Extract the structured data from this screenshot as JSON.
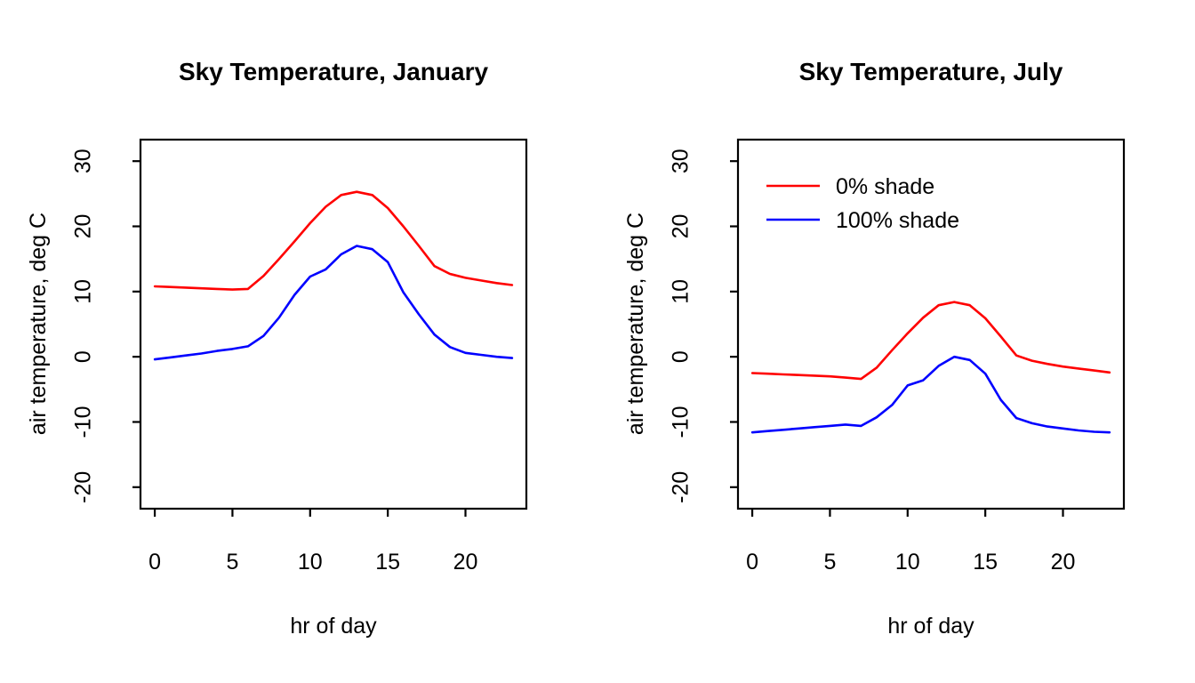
{
  "figure": {
    "background": "#ffffff",
    "panel_count": 2
  },
  "colors": {
    "series_red": "#ff0000",
    "series_blue": "#0000ff",
    "axis": "#000000",
    "background": "#ffffff"
  },
  "chart_data": [
    {
      "type": "line",
      "title": "Sky Temperature, January",
      "xlabel": "hr of day",
      "ylabel": "air temperature, deg C",
      "x_ticks": [
        0,
        5,
        10,
        15,
        20
      ],
      "y_ticks": [
        30,
        20,
        10,
        0,
        -10,
        -20
      ],
      "xlim": [
        0,
        23
      ],
      "ylim": [
        -20,
        30
      ],
      "grid": false,
      "legend": false,
      "x": [
        0,
        1,
        2,
        3,
        4,
        5,
        6,
        7,
        8,
        9,
        10,
        11,
        12,
        13,
        14,
        15,
        16,
        17,
        18,
        19,
        20,
        21,
        22,
        23
      ],
      "series": [
        {
          "name": "0% shade",
          "color": "#ff0000",
          "values": [
            10.8,
            10.7,
            10.6,
            10.5,
            10.4,
            10.3,
            10.4,
            12.4,
            15.0,
            17.7,
            20.5,
            23.0,
            24.8,
            25.3,
            24.8,
            22.8,
            20.0,
            17.0,
            13.9,
            12.7,
            12.1,
            11.7,
            11.3,
            11.0
          ]
        },
        {
          "name": "100% shade",
          "color": "#0000ff",
          "values": [
            -0.4,
            -0.1,
            0.2,
            0.5,
            0.9,
            1.2,
            1.6,
            3.2,
            6.0,
            9.5,
            12.3,
            13.4,
            15.7,
            17.0,
            16.5,
            14.5,
            9.9,
            6.5,
            3.4,
            1.5,
            0.6,
            0.3,
            0.0,
            -0.2
          ]
        }
      ]
    },
    {
      "type": "line",
      "title": "Sky Temperature, July",
      "xlabel": "hr of day",
      "ylabel": "air temperature, deg C",
      "x_ticks": [
        0,
        5,
        10,
        15,
        20
      ],
      "y_ticks": [
        30,
        20,
        10,
        0,
        -10,
        -20
      ],
      "xlim": [
        0,
        23
      ],
      "ylim": [
        -20,
        30
      ],
      "grid": false,
      "legend": true,
      "legend_position": "topleft",
      "x": [
        0,
        1,
        2,
        3,
        4,
        5,
        6,
        7,
        8,
        9,
        10,
        11,
        12,
        13,
        14,
        15,
        16,
        17,
        18,
        19,
        20,
        21,
        22,
        23
      ],
      "series": [
        {
          "name": "0% shade",
          "color": "#ff0000",
          "values": [
            -2.5,
            -2.6,
            -2.7,
            -2.8,
            -2.9,
            -3.0,
            -3.2,
            -3.4,
            -1.7,
            1.0,
            3.6,
            6.0,
            7.9,
            8.4,
            7.9,
            5.9,
            3.1,
            0.2,
            -0.6,
            -1.1,
            -1.5,
            -1.8,
            -2.1,
            -2.4
          ]
        },
        {
          "name": "100% shade",
          "color": "#0000ff",
          "values": [
            -11.6,
            -11.4,
            -11.2,
            -11.0,
            -10.8,
            -10.6,
            -10.4,
            -10.6,
            -9.3,
            -7.4,
            -4.4,
            -3.6,
            -1.4,
            0.0,
            -0.5,
            -2.6,
            -6.6,
            -9.4,
            -10.2,
            -10.7,
            -11.0,
            -11.3,
            -11.5,
            -11.6
          ]
        }
      ]
    }
  ]
}
